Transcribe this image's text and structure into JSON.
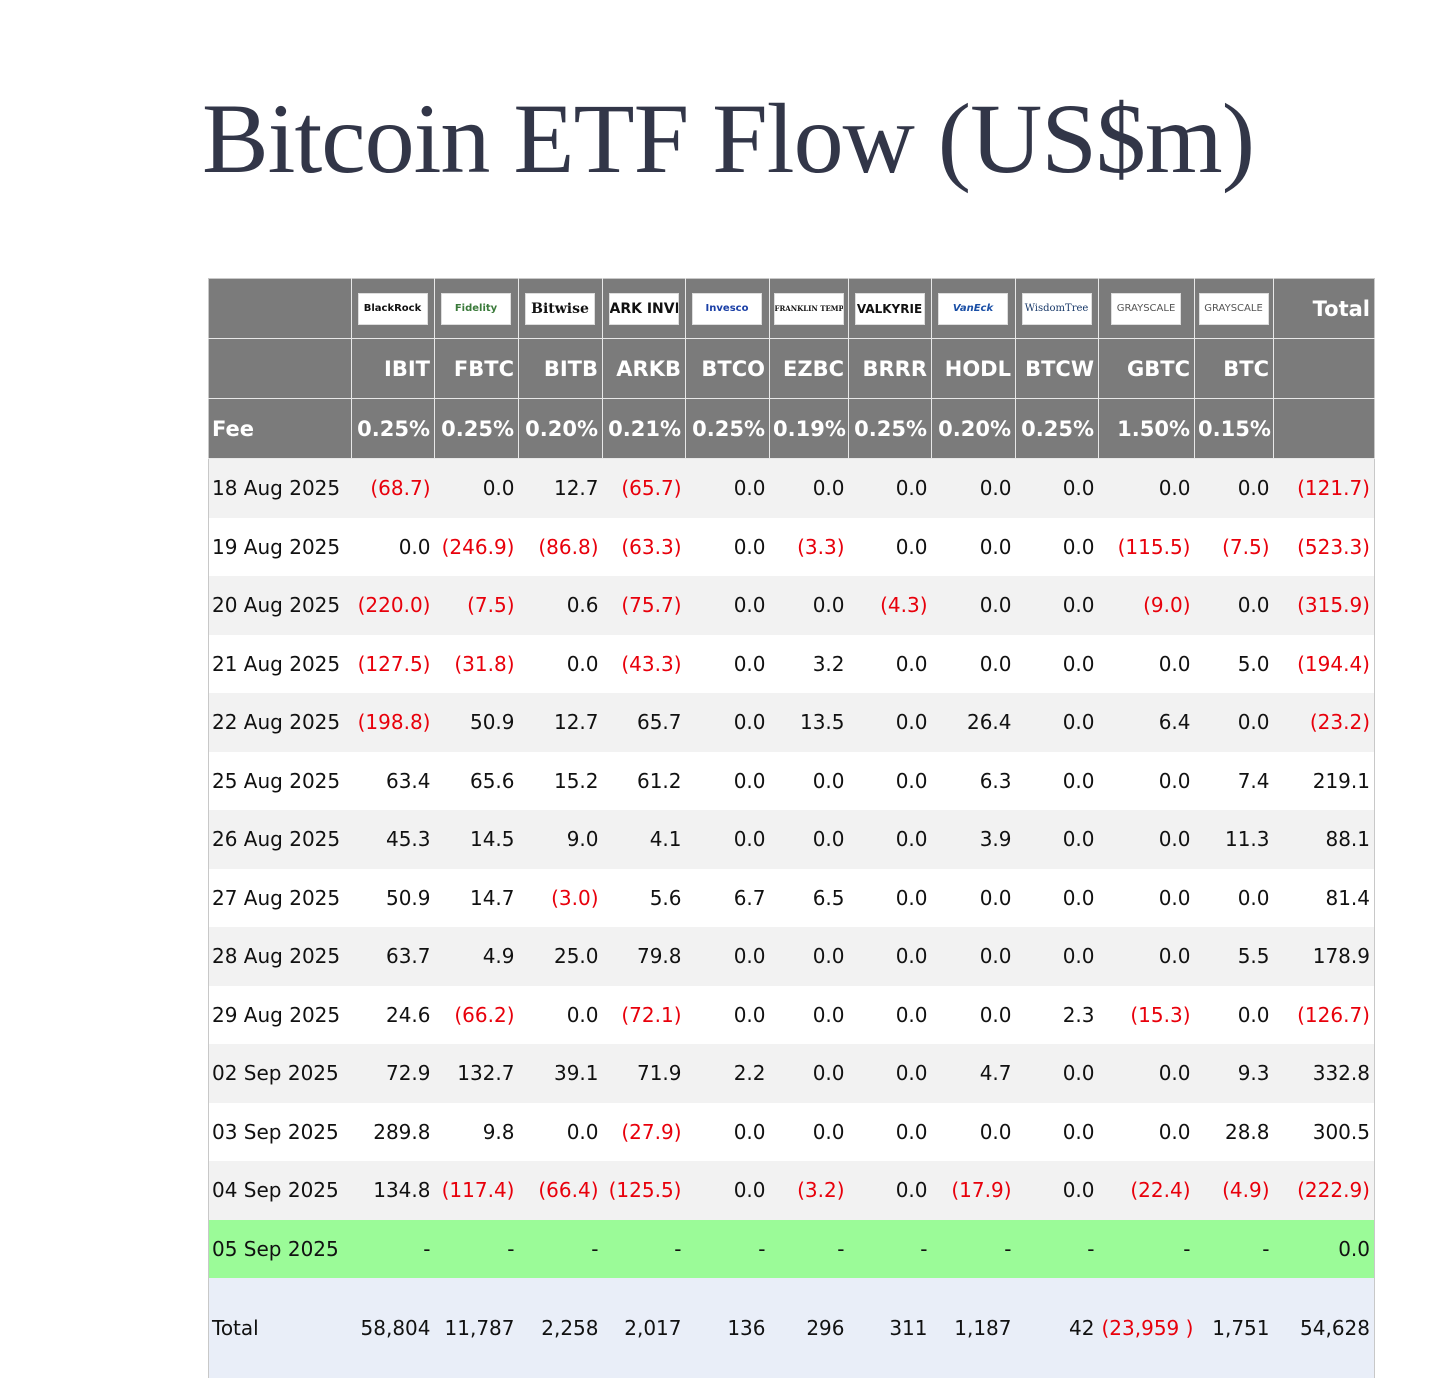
{
  "title": "Bitcoin ETF Flow (US$m)",
  "logos": [
    "BlackRock",
    "Fidelity",
    "Bitwise",
    "ARK INVEST",
    "Invesco",
    "FRANKLIN TEMPLETON",
    "VALKYRIE",
    "VanEck",
    "WisdomTree",
    "GRAYSCALE",
    "GRAYSCALE"
  ],
  "total_header": "Total",
  "tickers": [
    "IBIT",
    "FBTC",
    "BITB",
    "ARKB",
    "BTCO",
    "EZBC",
    "BRRR",
    "HODL",
    "BTCW",
    "GBTC",
    "BTC"
  ],
  "fee_label": "Fee",
  "fees": [
    "0.25%",
    "0.25%",
    "0.20%",
    "0.21%",
    "0.25%",
    "0.19%",
    "0.25%",
    "0.20%",
    "0.25%",
    "1.50%",
    "0.15%"
  ],
  "rows": [
    {
      "date": "18 Aug 2025",
      "values": [
        "(68.7)",
        "0.0",
        "12.7",
        "(65.7)",
        "0.0",
        "0.0",
        "0.0",
        "0.0",
        "0.0",
        "0.0",
        "0.0",
        "(121.7)"
      ]
    },
    {
      "date": "19 Aug 2025",
      "values": [
        "0.0",
        "(246.9)",
        "(86.8)",
        "(63.3)",
        "0.0",
        "(3.3)",
        "0.0",
        "0.0",
        "0.0",
        "(115.5)",
        "(7.5)",
        "(523.3)"
      ]
    },
    {
      "date": "20 Aug 2025",
      "values": [
        "(220.0)",
        "(7.5)",
        "0.6",
        "(75.7)",
        "0.0",
        "0.0",
        "(4.3)",
        "0.0",
        "0.0",
        "(9.0)",
        "0.0",
        "(315.9)"
      ]
    },
    {
      "date": "21 Aug 2025",
      "values": [
        "(127.5)",
        "(31.8)",
        "0.0",
        "(43.3)",
        "0.0",
        "3.2",
        "0.0",
        "0.0",
        "0.0",
        "0.0",
        "5.0",
        "(194.4)"
      ]
    },
    {
      "date": "22 Aug 2025",
      "values": [
        "(198.8)",
        "50.9",
        "12.7",
        "65.7",
        "0.0",
        "13.5",
        "0.0",
        "26.4",
        "0.0",
        "6.4",
        "0.0",
        "(23.2)"
      ]
    },
    {
      "date": "25 Aug 2025",
      "values": [
        "63.4",
        "65.6",
        "15.2",
        "61.2",
        "0.0",
        "0.0",
        "0.0",
        "6.3",
        "0.0",
        "0.0",
        "7.4",
        "219.1"
      ]
    },
    {
      "date": "26 Aug 2025",
      "values": [
        "45.3",
        "14.5",
        "9.0",
        "4.1",
        "0.0",
        "0.0",
        "0.0",
        "3.9",
        "0.0",
        "0.0",
        "11.3",
        "88.1"
      ]
    },
    {
      "date": "27 Aug 2025",
      "values": [
        "50.9",
        "14.7",
        "(3.0)",
        "5.6",
        "6.7",
        "6.5",
        "0.0",
        "0.0",
        "0.0",
        "0.0",
        "0.0",
        "81.4"
      ]
    },
    {
      "date": "28 Aug 2025",
      "values": [
        "63.7",
        "4.9",
        "25.0",
        "79.8",
        "0.0",
        "0.0",
        "0.0",
        "0.0",
        "0.0",
        "0.0",
        "5.5",
        "178.9"
      ]
    },
    {
      "date": "29 Aug 2025",
      "values": [
        "24.6",
        "(66.2)",
        "0.0",
        "(72.1)",
        "0.0",
        "0.0",
        "0.0",
        "0.0",
        "2.3",
        "(15.3)",
        "0.0",
        "(126.7)"
      ]
    },
    {
      "date": "02 Sep 2025",
      "values": [
        "72.9",
        "132.7",
        "39.1",
        "71.9",
        "2.2",
        "0.0",
        "0.0",
        "4.7",
        "0.0",
        "0.0",
        "9.3",
        "332.8"
      ]
    },
    {
      "date": "03 Sep 2025",
      "values": [
        "289.8",
        "9.8",
        "0.0",
        "(27.9)",
        "0.0",
        "0.0",
        "0.0",
        "0.0",
        "0.0",
        "0.0",
        "28.8",
        "300.5"
      ]
    },
    {
      "date": "04 Sep 2025",
      "values": [
        "134.8",
        "(117.4)",
        "(66.4)",
        "(125.5)",
        "0.0",
        "(3.2)",
        "0.0",
        "(17.9)",
        "0.0",
        "(22.4)",
        "(4.9)",
        "(222.9)"
      ]
    },
    {
      "date": "05 Sep 2025",
      "values": [
        "-",
        "-",
        "-",
        "-",
        "-",
        "-",
        "-",
        "-",
        "-",
        "-",
        "-",
        "0.0"
      ],
      "highlight": true
    }
  ],
  "total_row": {
    "label": "Total",
    "values": [
      "58,804",
      "11,787",
      "2,258",
      "2,017",
      "136",
      "296",
      "311",
      "1,187",
      "42",
      "(23,959 )",
      "1,751",
      "54,628"
    ]
  },
  "colors": {
    "header_bg": "#7b7b7b",
    "negative": "#e8000b",
    "highlight_row": "#9bfb98",
    "total_row_bg": "#e9eef8",
    "title": "#323648"
  }
}
